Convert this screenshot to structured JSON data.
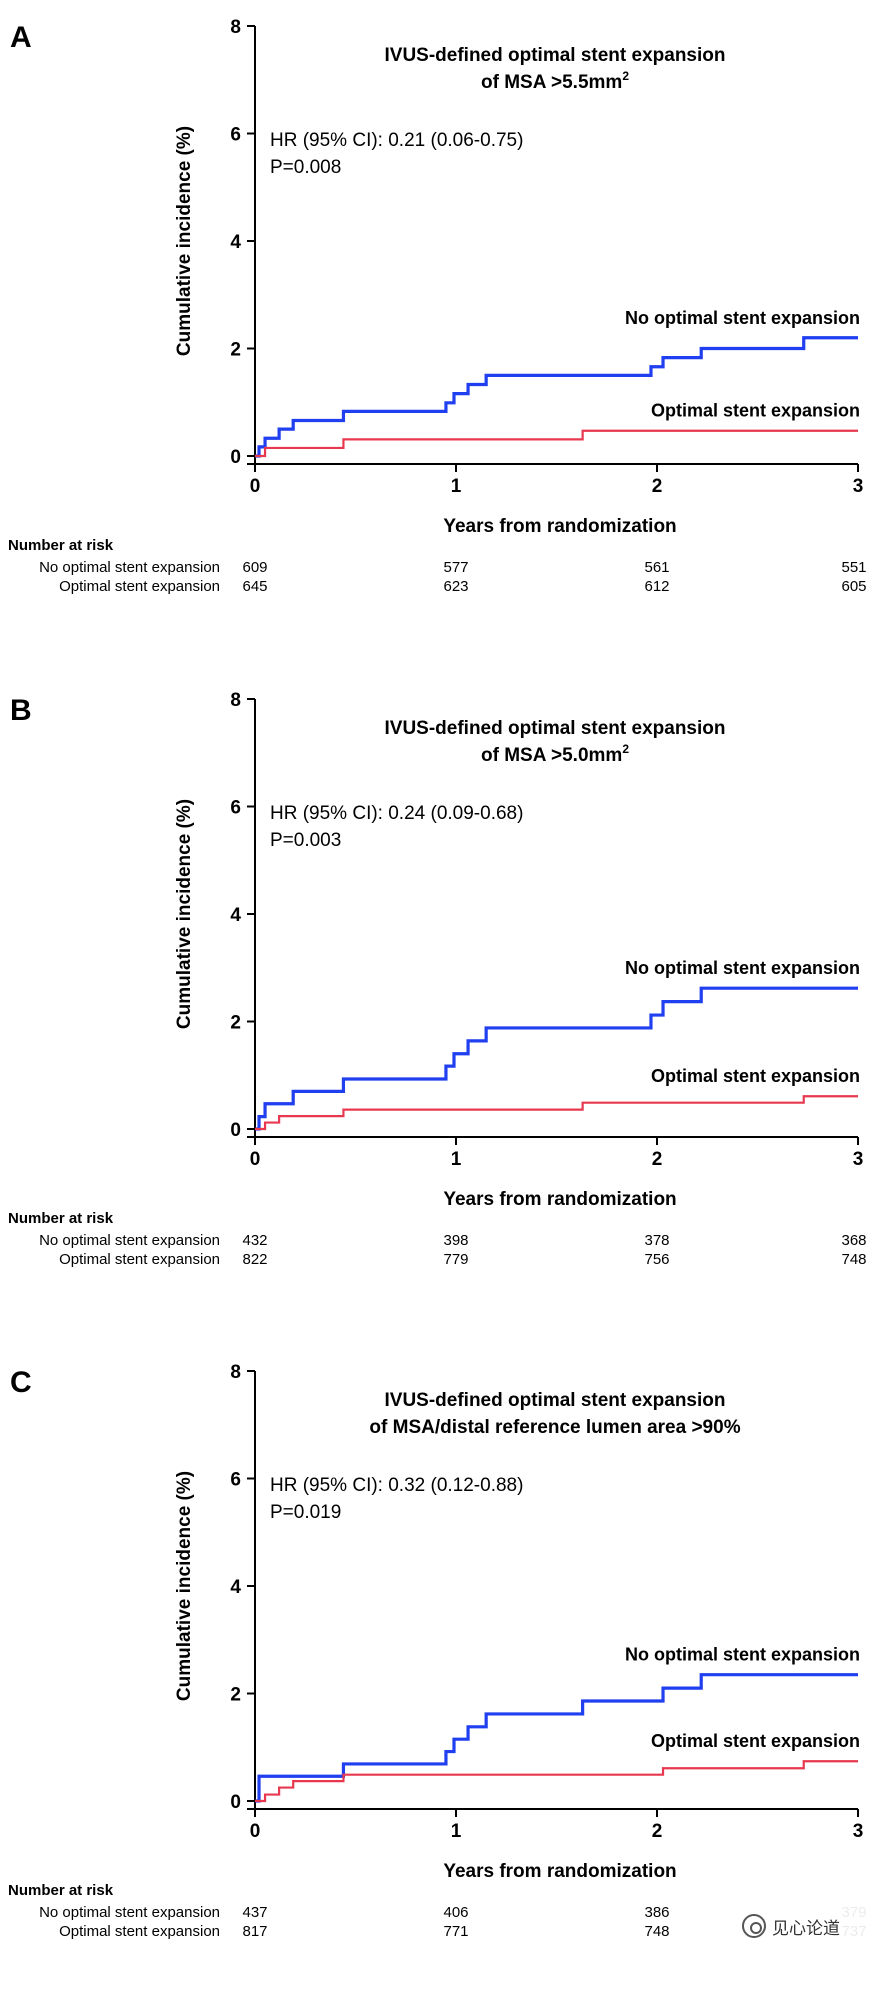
{
  "colors": {
    "no_optimal": "#1f3ff0",
    "optimal": "#e8384f",
    "axis": "#000000"
  },
  "chart_data": [
    {
      "type": "line",
      "panel_label": "A",
      "title_line1": "IVUS-defined optimal stent expansion",
      "title_line2": "of MSA >5.5mm",
      "title_superscript": "2",
      "hr_text": "HR (95% CI): 0.21 (0.06-0.75)",
      "p_text": "P=0.008",
      "xlabel": "Years from randomization",
      "ylabel": "Cumulative incidence (%)",
      "xlim": [
        0,
        3
      ],
      "ylim": [
        0,
        8
      ],
      "xticks": [
        "0",
        "1",
        "2",
        "3"
      ],
      "yticks": [
        "0",
        "2",
        "4",
        "6",
        "8"
      ],
      "series": [
        {
          "name": "No optimal stent expansion",
          "label_text": "No optimal stent expansion",
          "color_key": "no_optimal",
          "x": [
            0,
            0.02,
            0.05,
            0.12,
            0.19,
            0.44,
            0.95,
            0.99,
            1.06,
            1.15,
            1.97,
            2.03,
            2.22,
            2.73,
            3.0
          ],
          "y": [
            0,
            0.17,
            0.33,
            0.5,
            0.66,
            0.83,
            0.99,
            1.16,
            1.33,
            1.5,
            1.66,
            1.83,
            2.0,
            2.2,
            2.2
          ]
        },
        {
          "name": "Optimal stent expansion",
          "label_text": "Optimal stent expansion",
          "color_key": "optimal",
          "x": [
            0,
            0.05,
            0.44,
            1.63,
            3.0
          ],
          "y": [
            0,
            0.15,
            0.31,
            0.47,
            0.47
          ]
        }
      ],
      "risk_table": {
        "header": "Number at risk",
        "rows": [
          {
            "label": "No optimal stent expansion",
            "values": [
              "609",
              "577",
              "561",
              "551"
            ]
          },
          {
            "label": "Optimal stent expansion",
            "values": [
              "645",
              "623",
              "612",
              "605"
            ]
          }
        ]
      }
    },
    {
      "type": "line",
      "panel_label": "B",
      "title_line1": "IVUS-defined optimal stent expansion",
      "title_line2": "of MSA >5.0mm",
      "title_superscript": "2",
      "hr_text": "HR (95% CI): 0.24 (0.09-0.68)",
      "p_text": "P=0.003",
      "xlabel": "Years from randomization",
      "ylabel": "Cumulative incidence (%)",
      "xlim": [
        0,
        3
      ],
      "ylim": [
        0,
        8
      ],
      "xticks": [
        "0",
        "1",
        "2",
        "3"
      ],
      "yticks": [
        "0",
        "2",
        "4",
        "6",
        "8"
      ],
      "series": [
        {
          "name": "No optimal stent expansion",
          "label_text": "No optimal stent expansion",
          "color_key": "no_optimal",
          "x": [
            0,
            0.02,
            0.05,
            0.19,
            0.44,
            0.95,
            0.99,
            1.06,
            1.15,
            1.97,
            2.03,
            2.22,
            3.0
          ],
          "y": [
            0,
            0.23,
            0.47,
            0.7,
            0.93,
            1.17,
            1.4,
            1.64,
            1.88,
            2.12,
            2.37,
            2.62,
            2.62
          ]
        },
        {
          "name": "Optimal stent expansion",
          "label_text": "Optimal stent expansion",
          "color_key": "optimal",
          "x": [
            0,
            0.05,
            0.12,
            0.44,
            1.63,
            2.73,
            3.0
          ],
          "y": [
            0,
            0.12,
            0.24,
            0.36,
            0.49,
            0.61,
            0.61
          ]
        }
      ],
      "risk_table": {
        "header": "Number at risk",
        "rows": [
          {
            "label": "No optimal stent expansion",
            "values": [
              "432",
              "398",
              "378",
              "368"
            ]
          },
          {
            "label": "Optimal stent expansion",
            "values": [
              "822",
              "779",
              "756",
              "748"
            ]
          }
        ]
      }
    },
    {
      "type": "line",
      "panel_label": "C",
      "title_line1": "IVUS-defined optimal stent expansion",
      "title_line2": "of MSA/distal reference lumen area >90%",
      "title_superscript": "",
      "hr_text": "HR (95% CI): 0.32 (0.12-0.88)",
      "p_text": "P=0.019",
      "xlabel": "Years from randomization",
      "ylabel": "Cumulative incidence (%)",
      "xlim": [
        0,
        3
      ],
      "ylim": [
        0,
        8
      ],
      "xticks": [
        "0",
        "1",
        "2",
        "3"
      ],
      "yticks": [
        "0",
        "2",
        "4",
        "6",
        "8"
      ],
      "series": [
        {
          "name": "No optimal stent expansion",
          "label_text": "No optimal stent expansion",
          "color_key": "no_optimal",
          "x": [
            0,
            0.02,
            0.44,
            0.95,
            0.99,
            1.06,
            1.15,
            1.63,
            2.03,
            2.22,
            3.0
          ],
          "y": [
            0,
            0.46,
            0.69,
            0.92,
            1.15,
            1.38,
            1.62,
            1.86,
            2.1,
            2.35,
            2.35
          ]
        },
        {
          "name": "Optimal stent expansion",
          "label_text": "Optimal stent expansion",
          "color_key": "optimal",
          "x": [
            0,
            0.05,
            0.12,
            0.19,
            0.44,
            2.03,
            2.73,
            3.0
          ],
          "y": [
            0,
            0.12,
            0.25,
            0.37,
            0.49,
            0.61,
            0.74,
            0.74
          ]
        }
      ],
      "risk_table": {
        "header": "Number at risk",
        "rows": [
          {
            "label": "No optimal stent expansion",
            "values": [
              "437",
              "406",
              "386",
              "379"
            ]
          },
          {
            "label": "Optimal stent expansion",
            "values": [
              "817",
              "771",
              "748",
              "737"
            ]
          }
        ]
      }
    }
  ],
  "watermark": {
    "text": "见心论道"
  }
}
